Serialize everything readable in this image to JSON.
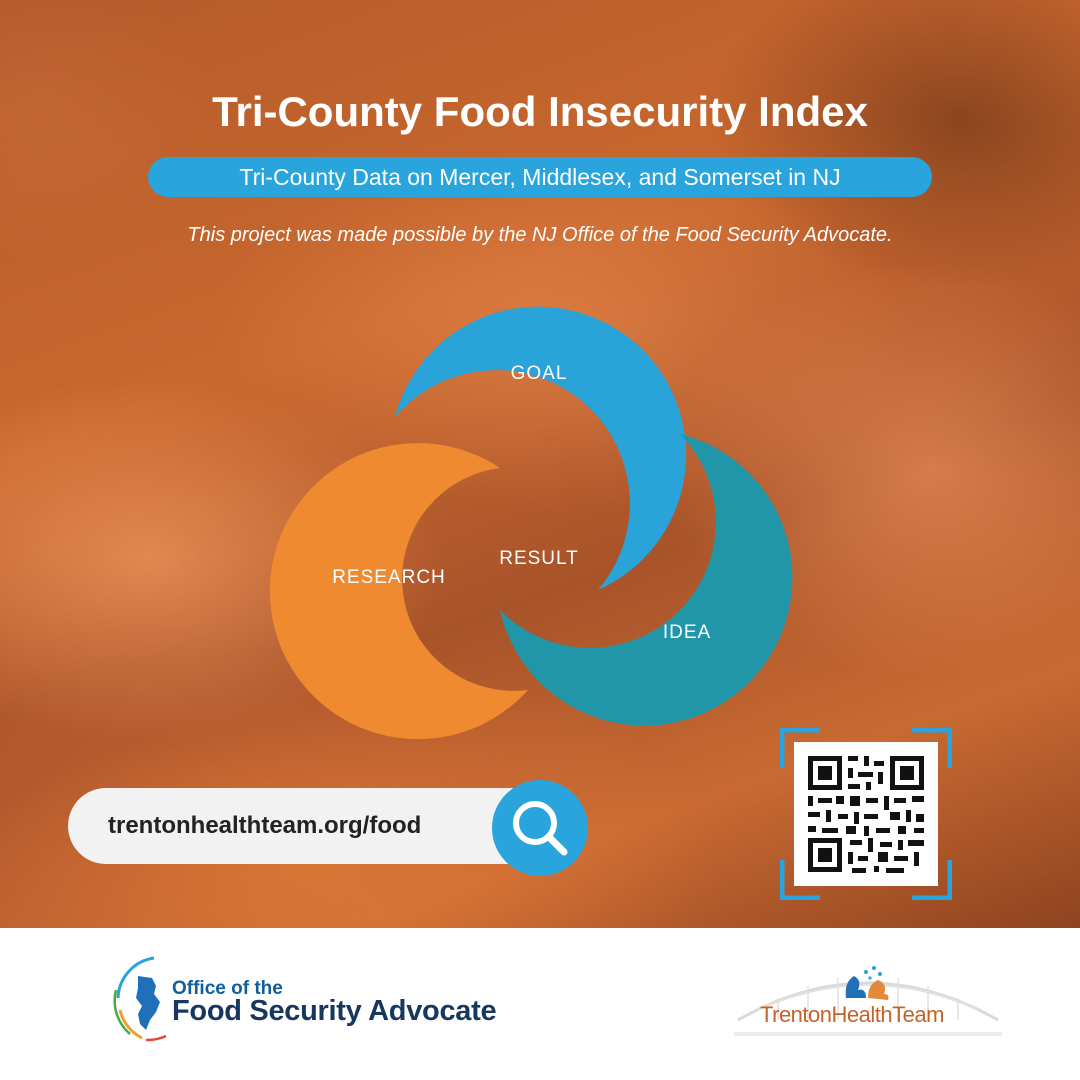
{
  "header": {
    "title": "Tri-County Food Insecurity Index",
    "subtitle": "Tri-County Data on Mercer, Middlesex, and Somerset in NJ",
    "credit": "This project was made possible by the NJ Office of the Food Security Advocate."
  },
  "diagram": {
    "segments": [
      {
        "label": "GOAL",
        "color": "#2aa3d9"
      },
      {
        "label": "RESEARCH",
        "color": "#f08a30"
      },
      {
        "label": "IDEA",
        "color": "#2196a8"
      }
    ],
    "center_label": "RESULT"
  },
  "search": {
    "url": "trentonhealthteam.org/food",
    "icon": "search-icon"
  },
  "qr": {
    "icon": "qr-code-icon"
  },
  "footer": {
    "osa_line1": "Office of the",
    "osa_line2": "Food Security Advocate",
    "tht_name": "TrentonHealthTeam"
  },
  "colors": {
    "accent_blue": "#29a4dc",
    "orange": "#f08a30",
    "teal": "#2196a8",
    "navy": "#17375e"
  }
}
